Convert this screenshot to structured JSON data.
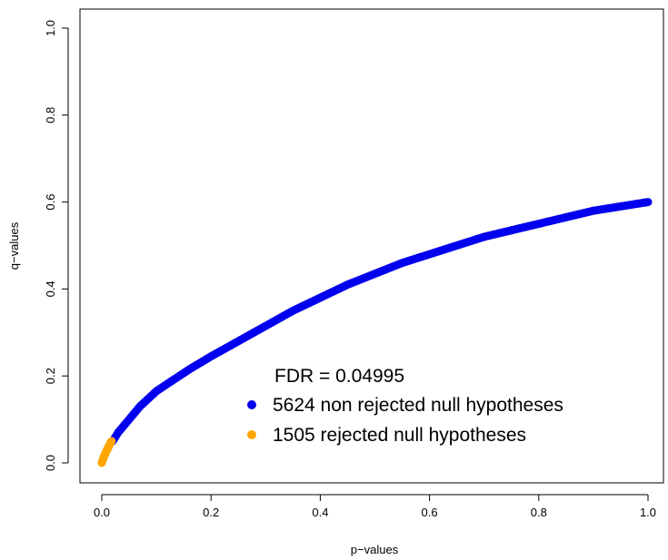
{
  "chart_data": {
    "type": "scatter",
    "xlabel": "p−values",
    "ylabel": "q−values",
    "xlim": [
      0,
      1
    ],
    "ylim": [
      0,
      1
    ],
    "x_ticks": [
      "0.0",
      "0.2",
      "0.4",
      "0.6",
      "0.8",
      "1.0"
    ],
    "y_ticks": [
      "0.0",
      "0.2",
      "0.4",
      "0.6",
      "0.8",
      "1.0"
    ],
    "legend": {
      "title": "FDR = 0.04995",
      "placement": "bottom-right",
      "entries": [
        {
          "label": "5624 non rejected null hypotheses",
          "color": "#0000ee"
        },
        {
          "label": "1505 rejected null hypotheses",
          "color": "#ffa500"
        }
      ]
    },
    "series": [
      {
        "name": "5624 non rejected null hypotheses",
        "color": "#0000ee",
        "x": [
          0.02,
          0.03,
          0.05,
          0.07,
          0.1,
          0.13,
          0.16,
          0.2,
          0.25,
          0.3,
          0.35,
          0.4,
          0.45,
          0.5,
          0.55,
          0.6,
          0.65,
          0.7,
          0.75,
          0.8,
          0.85,
          0.9,
          0.95,
          1.0
        ],
        "y": [
          0.05,
          0.07,
          0.1,
          0.13,
          0.165,
          0.19,
          0.215,
          0.245,
          0.28,
          0.315,
          0.35,
          0.38,
          0.41,
          0.435,
          0.46,
          0.48,
          0.5,
          0.52,
          0.535,
          0.55,
          0.565,
          0.58,
          0.59,
          0.6
        ]
      },
      {
        "name": "1505 rejected null hypotheses",
        "color": "#ffa500",
        "x": [
          0.0,
          0.002,
          0.004,
          0.006,
          0.008,
          0.01,
          0.012,
          0.014,
          0.016,
          0.018
        ],
        "y": [
          0.0,
          0.008,
          0.014,
          0.02,
          0.026,
          0.031,
          0.036,
          0.041,
          0.046,
          0.05
        ]
      }
    ]
  }
}
